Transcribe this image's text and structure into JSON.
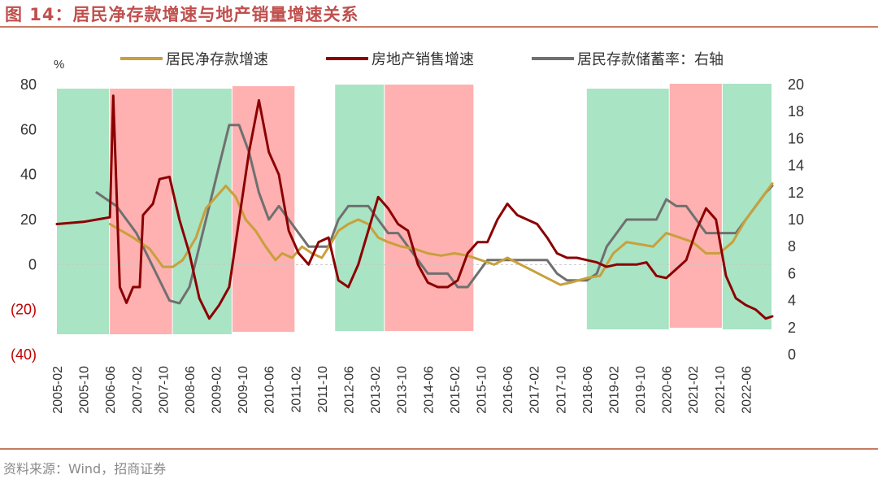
{
  "figure": {
    "title": "图 14：居民净存款增速与地产销量增速关系",
    "source": "资料来源：Wind，招商证券"
  },
  "chart_data": {
    "type": "line",
    "left_axis": {
      "unit": "%",
      "ylim": [
        -40,
        80
      ],
      "ticks": [
        80,
        60,
        40,
        20,
        0,
        -20,
        -40
      ],
      "tick_labels": [
        "80",
        "60",
        "40",
        "20",
        "0",
        "(20)",
        "(40)"
      ]
    },
    "right_axis": {
      "ylim": [
        0,
        20
      ],
      "ticks": [
        20,
        18,
        16,
        14,
        12,
        10,
        8,
        6,
        4,
        2,
        0
      ],
      "tick_labels": [
        "20",
        "18",
        "16",
        "14",
        "12",
        "10",
        "8",
        "6",
        "4",
        "2",
        "0"
      ]
    },
    "x_range": [
      "2005-02",
      "2023-02"
    ],
    "x_tick_labels": [
      "2005-02",
      "2005-10",
      "2006-06",
      "2007-02",
      "2007-10",
      "2008-06",
      "2009-02",
      "2009-10",
      "2010-06",
      "2011-02",
      "2011-10",
      "2012-06",
      "2013-02",
      "2013-10",
      "2014-06",
      "2015-02",
      "2015-10",
      "2016-06",
      "2017-02",
      "2017-10",
      "2018-06",
      "2019-02",
      "2019-10",
      "2020-06",
      "2021-02",
      "2021-10",
      "2022-06"
    ],
    "legend_position": "top",
    "grid": false,
    "colors": {
      "deposit": "#c8a03c",
      "sales": "#8b0000",
      "savings": "#707070",
      "green_band": "#a9e4c4",
      "red_band": "#ffb0b0",
      "title": "#c0504d",
      "neg_tick": "#c00000"
    },
    "shaded_periods": [
      {
        "start": "2005-02",
        "end": "2006-06",
        "color": "green"
      },
      {
        "start": "2006-06",
        "end": "2008-01",
        "color": "red"
      },
      {
        "start": "2008-01",
        "end": "2009-07",
        "color": "green"
      },
      {
        "start": "2009-07",
        "end": "2011-02",
        "color": "red"
      },
      {
        "start": "2012-02",
        "end": "2013-05",
        "color": "green"
      },
      {
        "start": "2013-05",
        "end": "2015-08",
        "color": "red"
      },
      {
        "start": "2018-06",
        "end": "2020-07",
        "color": "green"
      },
      {
        "start": "2020-07",
        "end": "2021-11",
        "color": "red"
      },
      {
        "start": "2021-11",
        "end": "2023-02",
        "color": "green"
      }
    ],
    "series": [
      {
        "name": "居民净存款增速",
        "axis": "left",
        "key": "deposit",
        "points": [
          [
            "2006-06",
            18
          ],
          [
            "2007-01",
            12
          ],
          [
            "2007-06",
            7
          ],
          [
            "2007-10",
            -1
          ],
          [
            "2008-01",
            -1
          ],
          [
            "2008-04",
            2
          ],
          [
            "2008-08",
            12
          ],
          [
            "2008-11",
            25
          ],
          [
            "2009-02",
            30
          ],
          [
            "2009-05",
            35
          ],
          [
            "2009-08",
            30
          ],
          [
            "2009-11",
            20
          ],
          [
            "2010-02",
            15
          ],
          [
            "2010-05",
            8
          ],
          [
            "2010-08",
            2
          ],
          [
            "2010-10",
            5
          ],
          [
            "2011-01",
            3
          ],
          [
            "2011-04",
            8
          ],
          [
            "2011-07",
            5
          ],
          [
            "2011-10",
            3
          ],
          [
            "2012-01",
            10
          ],
          [
            "2012-03",
            15
          ],
          [
            "2012-06",
            18
          ],
          [
            "2012-09",
            20
          ],
          [
            "2012-12",
            18
          ],
          [
            "2013-03",
            12
          ],
          [
            "2013-06",
            10
          ],
          [
            "2013-10",
            8
          ],
          [
            "2014-02",
            7
          ],
          [
            "2014-06",
            5
          ],
          [
            "2014-10",
            4
          ],
          [
            "2015-02",
            5
          ],
          [
            "2015-06",
            4
          ],
          [
            "2015-10",
            2
          ],
          [
            "2016-02",
            0
          ],
          [
            "2016-06",
            3
          ],
          [
            "2016-10",
            0
          ],
          [
            "2017-02",
            -3
          ],
          [
            "2017-06",
            -6
          ],
          [
            "2017-10",
            -9
          ],
          [
            "2018-01",
            -8
          ],
          [
            "2018-06",
            -6
          ],
          [
            "2018-10",
            -5
          ],
          [
            "2019-02",
            5
          ],
          [
            "2019-06",
            10
          ],
          [
            "2019-10",
            9
          ],
          [
            "2020-02",
            8
          ],
          [
            "2020-06",
            14
          ],
          [
            "2020-10",
            12
          ],
          [
            "2021-02",
            10
          ],
          [
            "2021-06",
            5
          ],
          [
            "2021-10",
            5
          ],
          [
            "2022-02",
            10
          ],
          [
            "2022-06",
            20
          ],
          [
            "2022-10",
            28
          ],
          [
            "2023-02",
            36
          ]
        ]
      },
      {
        "name": "房地产销售增速",
        "axis": "left",
        "key": "sales",
        "points": [
          [
            "2005-02",
            18
          ],
          [
            "2005-10",
            19
          ],
          [
            "2006-06",
            21
          ],
          [
            "2006-07",
            75
          ],
          [
            "2006-09",
            -10
          ],
          [
            "2006-11",
            -17
          ],
          [
            "2007-01",
            -10
          ],
          [
            "2007-03",
            -10
          ],
          [
            "2007-04",
            22
          ],
          [
            "2007-07",
            27
          ],
          [
            "2007-09",
            38
          ],
          [
            "2007-12",
            39
          ],
          [
            "2008-03",
            20
          ],
          [
            "2008-06",
            5
          ],
          [
            "2008-09",
            -15
          ],
          [
            "2008-12",
            -24
          ],
          [
            "2009-03",
            -18
          ],
          [
            "2009-06",
            -10
          ],
          [
            "2009-09",
            20
          ],
          [
            "2009-12",
            50
          ],
          [
            "2010-03",
            73
          ],
          [
            "2010-06",
            50
          ],
          [
            "2010-09",
            40
          ],
          [
            "2010-12",
            15
          ],
          [
            "2011-03",
            5
          ],
          [
            "2011-06",
            0
          ],
          [
            "2011-09",
            10
          ],
          [
            "2011-12",
            12
          ],
          [
            "2012-03",
            -7
          ],
          [
            "2012-06",
            -10
          ],
          [
            "2012-09",
            0
          ],
          [
            "2012-12",
            15
          ],
          [
            "2013-03",
            30
          ],
          [
            "2013-06",
            25
          ],
          [
            "2013-09",
            18
          ],
          [
            "2013-12",
            15
          ],
          [
            "2014-03",
            0
          ],
          [
            "2014-06",
            -8
          ],
          [
            "2014-09",
            -10
          ],
          [
            "2014-12",
            -10
          ],
          [
            "2015-03",
            -7
          ],
          [
            "2015-06",
            5
          ],
          [
            "2015-09",
            10
          ],
          [
            "2015-12",
            10
          ],
          [
            "2016-03",
            20
          ],
          [
            "2016-06",
            27
          ],
          [
            "2016-09",
            22
          ],
          [
            "2016-12",
            20
          ],
          [
            "2017-03",
            18
          ],
          [
            "2017-06",
            12
          ],
          [
            "2017-09",
            5
          ],
          [
            "2017-12",
            3
          ],
          [
            "2018-03",
            3
          ],
          [
            "2018-06",
            2
          ],
          [
            "2018-09",
            1
          ],
          [
            "2018-12",
            -1
          ],
          [
            "2019-03",
            0
          ],
          [
            "2019-06",
            0
          ],
          [
            "2019-09",
            0
          ],
          [
            "2019-12",
            1
          ],
          [
            "2020-03",
            -5
          ],
          [
            "2020-06",
            -6
          ],
          [
            "2020-09",
            -2
          ],
          [
            "2020-12",
            2
          ],
          [
            "2021-03",
            15
          ],
          [
            "2021-06",
            25
          ],
          [
            "2021-09",
            20
          ],
          [
            "2021-12",
            -5
          ],
          [
            "2022-03",
            -15
          ],
          [
            "2022-06",
            -18
          ],
          [
            "2022-09",
            -20
          ],
          [
            "2022-12",
            -24
          ],
          [
            "2023-02",
            -23
          ]
        ]
      },
      {
        "name": "居民存款储蓄率：右轴",
        "axis": "right",
        "key": "savings",
        "points": [
          [
            "2006-02",
            12
          ],
          [
            "2006-08",
            11
          ],
          [
            "2007-02",
            9
          ],
          [
            "2007-08",
            6
          ],
          [
            "2007-12",
            4
          ],
          [
            "2008-03",
            3.8
          ],
          [
            "2008-06",
            5
          ],
          [
            "2008-09",
            8
          ],
          [
            "2008-12",
            11
          ],
          [
            "2009-03",
            14
          ],
          [
            "2009-06",
            17
          ],
          [
            "2009-09",
            17
          ],
          [
            "2009-12",
            15
          ],
          [
            "2010-03",
            12
          ],
          [
            "2010-06",
            10
          ],
          [
            "2010-09",
            11
          ],
          [
            "2010-12",
            10
          ],
          [
            "2011-03",
            9
          ],
          [
            "2011-06",
            8
          ],
          [
            "2011-09",
            8
          ],
          [
            "2011-12",
            8
          ],
          [
            "2012-03",
            10
          ],
          [
            "2012-06",
            11
          ],
          [
            "2012-09",
            11
          ],
          [
            "2012-12",
            11
          ],
          [
            "2013-03",
            10
          ],
          [
            "2013-06",
            9
          ],
          [
            "2013-09",
            9
          ],
          [
            "2013-12",
            8
          ],
          [
            "2014-03",
            7
          ],
          [
            "2014-06",
            6
          ],
          [
            "2014-09",
            6
          ],
          [
            "2014-12",
            6
          ],
          [
            "2015-03",
            5
          ],
          [
            "2015-06",
            5
          ],
          [
            "2015-09",
            6
          ],
          [
            "2015-12",
            7
          ],
          [
            "2016-03",
            7
          ],
          [
            "2016-06",
            7
          ],
          [
            "2016-09",
            7
          ],
          [
            "2016-12",
            7
          ],
          [
            "2017-03",
            7
          ],
          [
            "2017-06",
            7
          ],
          [
            "2017-09",
            6
          ],
          [
            "2017-12",
            5.5
          ],
          [
            "2018-03",
            5.5
          ],
          [
            "2018-06",
            5.5
          ],
          [
            "2018-09",
            6
          ],
          [
            "2018-12",
            8
          ],
          [
            "2019-03",
            9
          ],
          [
            "2019-06",
            10
          ],
          [
            "2019-09",
            10
          ],
          [
            "2019-12",
            10
          ],
          [
            "2020-03",
            10
          ],
          [
            "2020-06",
            11.5
          ],
          [
            "2020-09",
            11
          ],
          [
            "2020-12",
            11
          ],
          [
            "2021-03",
            10
          ],
          [
            "2021-06",
            9
          ],
          [
            "2021-09",
            9
          ],
          [
            "2021-12",
            9
          ],
          [
            "2022-03",
            9
          ],
          [
            "2022-06",
            10
          ],
          [
            "2022-09",
            11
          ],
          [
            "2022-12",
            12
          ],
          [
            "2023-02",
            12.5
          ]
        ]
      }
    ]
  }
}
